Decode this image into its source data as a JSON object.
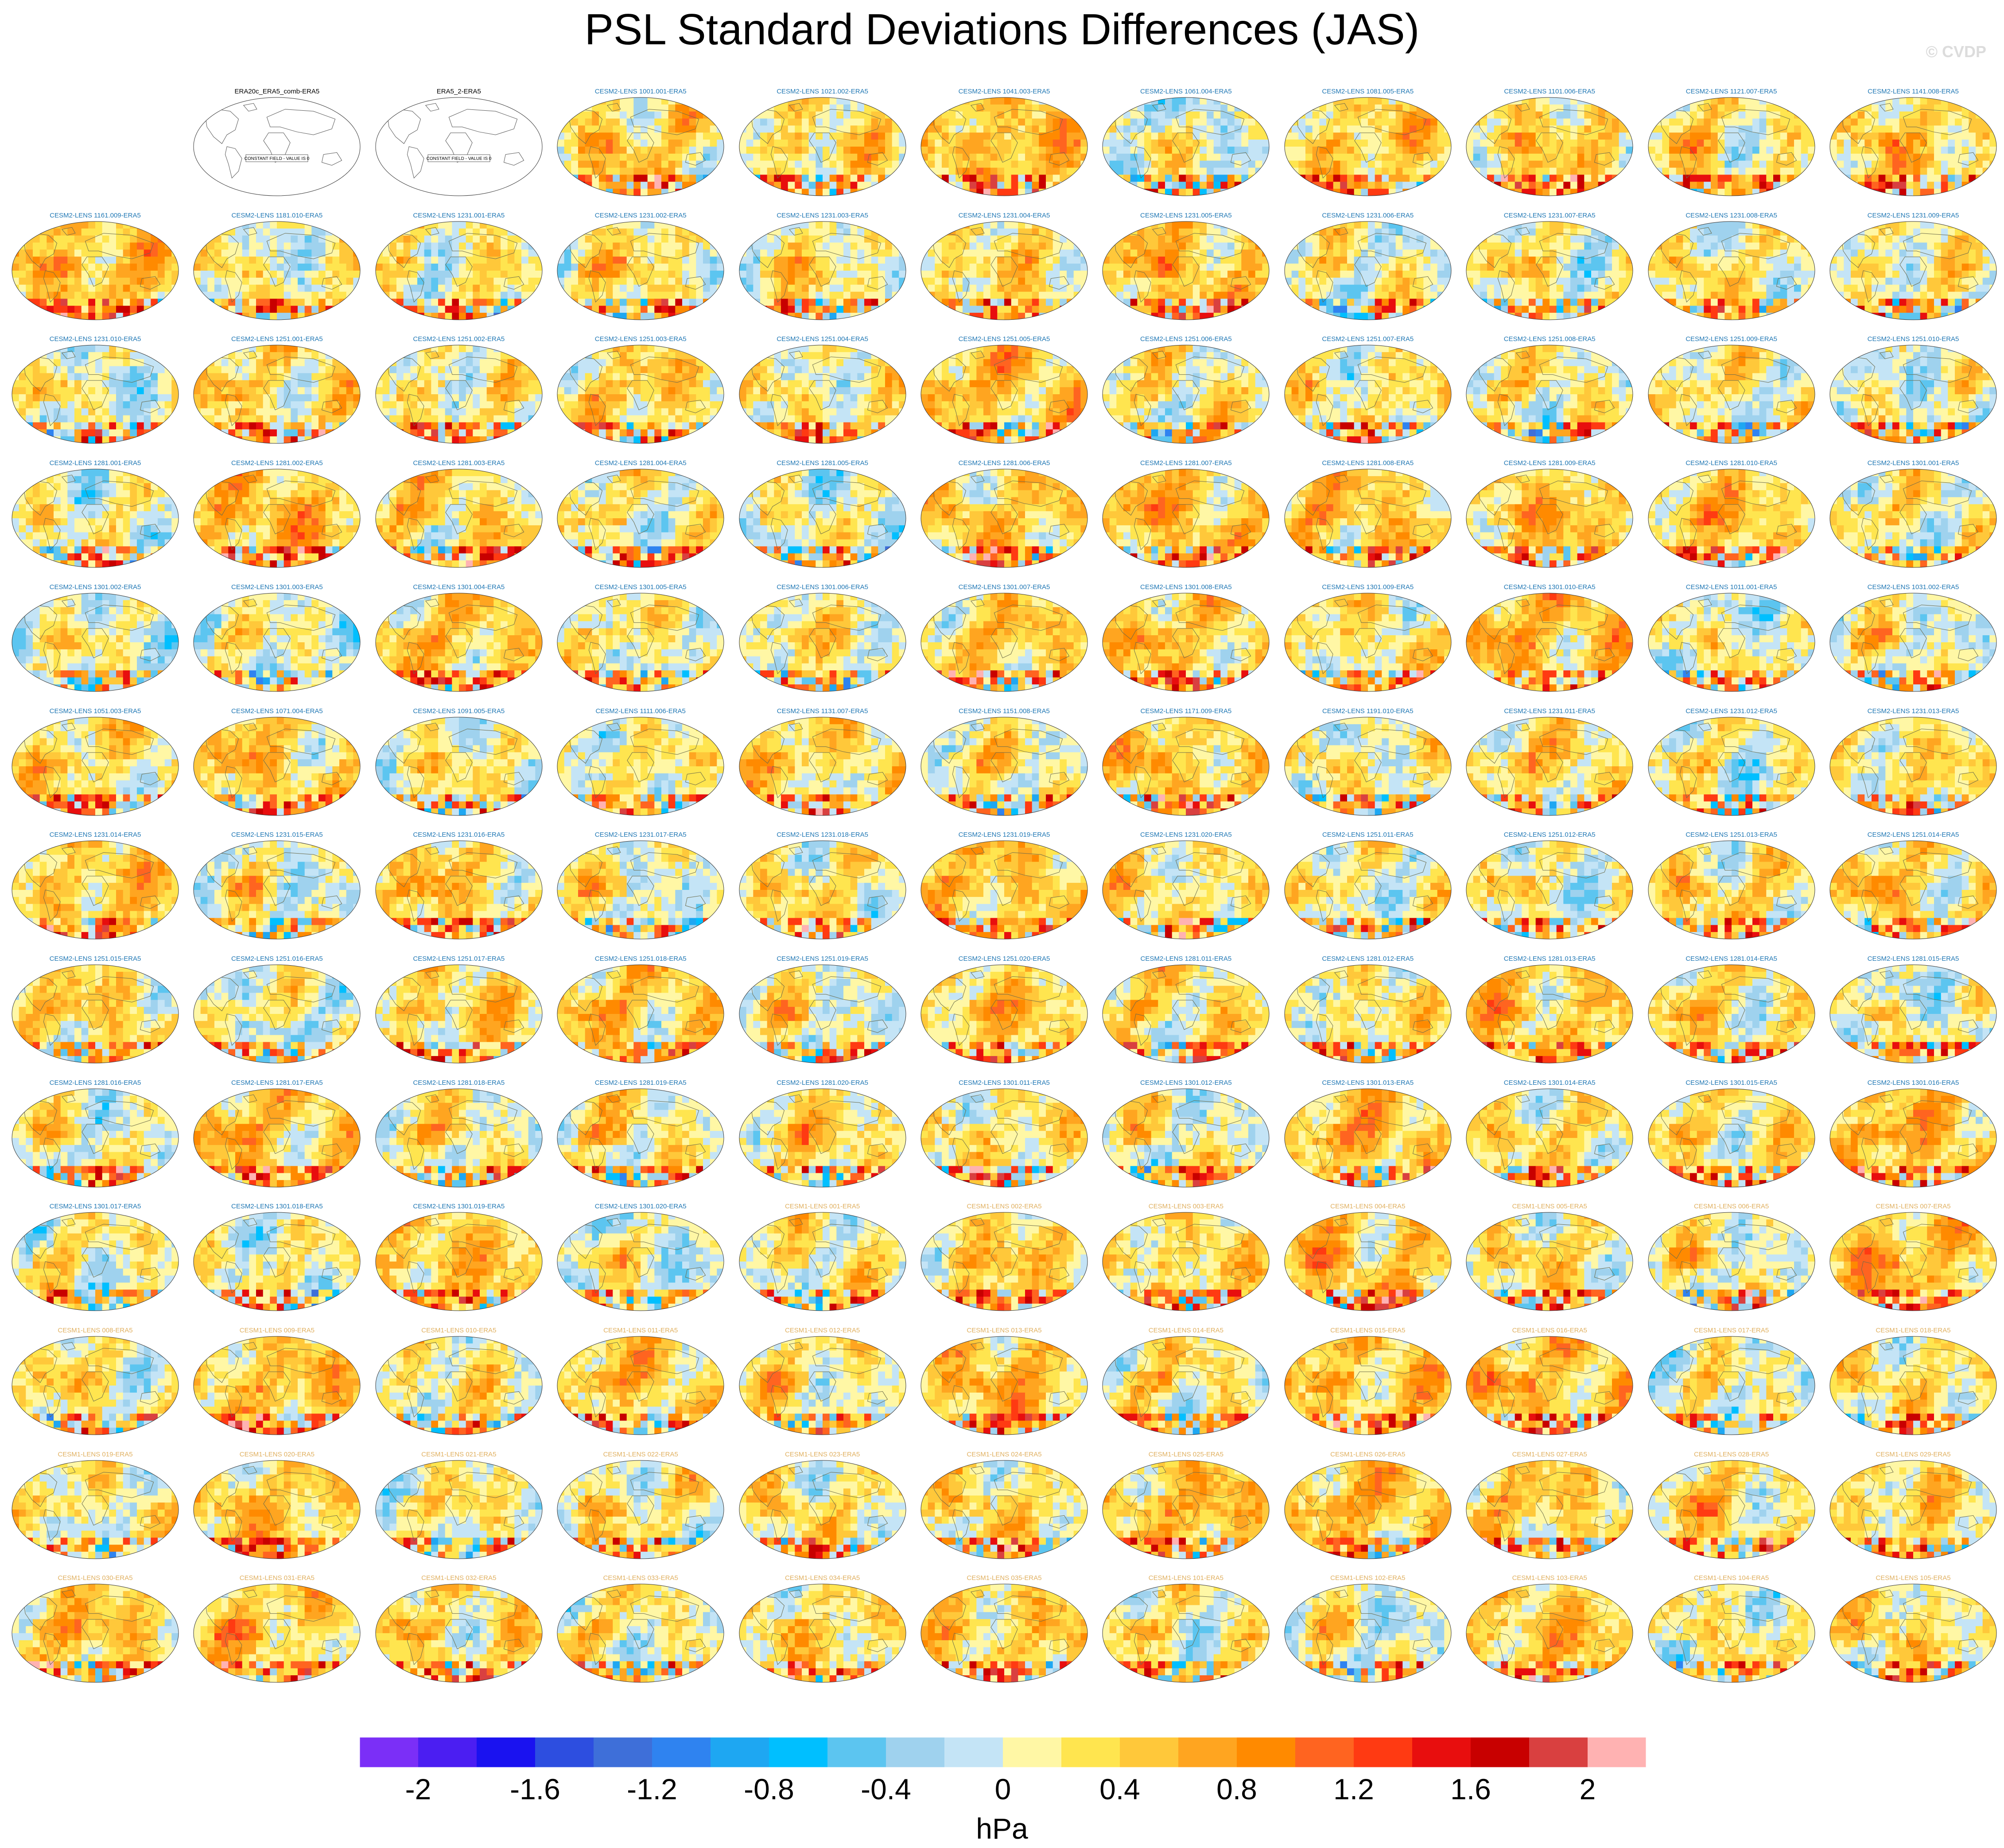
{
  "title": "PSL Standard Deviations Differences (JAS)",
  "copyright": "© CVDP",
  "units": "hPa",
  "colors": {
    "cesm2_title": "#1f77b4",
    "cesm1_title": "#e0b060",
    "obs_title": "#000000",
    "palette": [
      "#7b2ff7",
      "#4b1ef2",
      "#1a12f0",
      "#2d4ee0",
      "#3e6fd9",
      "#2f83f0",
      "#1ea7f2",
      "#00bfff",
      "#5cc5f0",
      "#9fd2ee",
      "#c4e4f6",
      "#fff7a5",
      "#ffe54f",
      "#ffc83a",
      "#ffa520",
      "#ff8a00",
      "#ff6420",
      "#ff3a12",
      "#e80e0e",
      "#c80000",
      "#d94040",
      "#ffb2b2"
    ]
  },
  "chart_data": {
    "type": "heatmap",
    "description_key": "colorbar",
    "colorbar": {
      "min": -2.2,
      "max": 2.2,
      "interval": 0.2,
      "tick_labels": [
        "-2",
        "-1.6",
        "-1.2",
        "-0.8",
        "-0.4",
        "0",
        "0.4",
        "0.8",
        "1.2",
        "1.6",
        "2"
      ],
      "tick_values": [
        -2,
        -1.6,
        -1.2,
        -0.8,
        -0.4,
        0,
        0.4,
        0.8,
        1.2,
        1.6,
        2
      ],
      "units": "hPa"
    },
    "grid": {
      "rows": 13,
      "cols": 11
    },
    "obs_panels": [
      {
        "title": "ERA20c_ERA5_comb-ERA5",
        "note": "CONSTANT FIELD - VALUE IS 0"
      },
      {
        "title": "ERA5_2-ERA5",
        "note": "CONSTANT FIELD - VALUE IS 0"
      }
    ],
    "panel_titles": [
      "CESM2-LENS 1001.001-ERA5",
      "CESM2-LENS 1021.002-ERA5",
      "CESM2-LENS 1041.003-ERA5",
      "CESM2-LENS 1061.004-ERA5",
      "CESM2-LENS 1081.005-ERA5",
      "CESM2-LENS 1101.006-ERA5",
      "CESM2-LENS 1121.007-ERA5",
      "CESM2-LENS 1141.008-ERA5",
      "CESM2-LENS 1161.009-ERA5",
      "CESM2-LENS 1181.010-ERA5",
      "CESM2-LENS 1231.001-ERA5",
      "CESM2-LENS 1231.002-ERA5",
      "CESM2-LENS 1231.003-ERA5",
      "CESM2-LENS 1231.004-ERA5",
      "CESM2-LENS 1231.005-ERA5",
      "CESM2-LENS 1231.006-ERA5",
      "CESM2-LENS 1231.007-ERA5",
      "CESM2-LENS 1231.008-ERA5",
      "CESM2-LENS 1231.009-ERA5",
      "CESM2-LENS 1231.010-ERA5",
      "CESM2-LENS 1251.001-ERA5",
      "CESM2-LENS 1251.002-ERA5",
      "CESM2-LENS 1251.003-ERA5",
      "CESM2-LENS 1251.004-ERA5",
      "CESM2-LENS 1251.005-ERA5",
      "CESM2-LENS 1251.006-ERA5",
      "CESM2-LENS 1251.007-ERA5",
      "CESM2-LENS 1251.008-ERA5",
      "CESM2-LENS 1251.009-ERA5",
      "CESM2-LENS 1251.010-ERA5",
      "CESM2-LENS 1281.001-ERA5",
      "CESM2-LENS 1281.002-ERA5",
      "CESM2-LENS 1281.003-ERA5",
      "CESM2-LENS 1281.004-ERA5",
      "CESM2-LENS 1281.005-ERA5",
      "CESM2-LENS 1281.006-ERA5",
      "CESM2-LENS 1281.007-ERA5",
      "CESM2-LENS 1281.008-ERA5",
      "CESM2-LENS 1281.009-ERA5",
      "CESM2-LENS 1281.010-ERA5",
      "CESM2-LENS 1301.001-ERA5",
      "CESM2-LENS 1301.002-ERA5",
      "CESM2-LENS 1301.003-ERA5",
      "CESM2-LENS 1301.004-ERA5",
      "CESM2-LENS 1301.005-ERA5",
      "CESM2-LENS 1301.006-ERA5",
      "CESM2-LENS 1301.007-ERA5",
      "CESM2-LENS 1301.008-ERA5",
      "CESM2-LENS 1301.009-ERA5",
      "CESM2-LENS 1301.010-ERA5",
      "CESM2-LENS 1011.001-ERA5",
      "CESM2-LENS 1031.002-ERA5",
      "CESM2-LENS 1051.003-ERA5",
      "CESM2-LENS 1071.004-ERA5",
      "CESM2-LENS 1091.005-ERA5",
      "CESM2-LENS 1111.006-ERA5",
      "CESM2-LENS 1131.007-ERA5",
      "CESM2-LENS 1151.008-ERA5",
      "CESM2-LENS 1171.009-ERA5",
      "CESM2-LENS 1191.010-ERA5",
      "CESM2-LENS 1231.011-ERA5",
      "CESM2-LENS 1231.012-ERA5",
      "CESM2-LENS 1231.013-ERA5",
      "CESM2-LENS 1231.014-ERA5",
      "CESM2-LENS 1231.015-ERA5",
      "CESM2-LENS 1231.016-ERA5",
      "CESM2-LENS 1231.017-ERA5",
      "CESM2-LENS 1231.018-ERA5",
      "CESM2-LENS 1231.019-ERA5",
      "CESM2-LENS 1231.020-ERA5",
      "CESM2-LENS 1251.011-ERA5",
      "CESM2-LENS 1251.012-ERA5",
      "CESM2-LENS 1251.013-ERA5",
      "CESM2-LENS 1251.014-ERA5",
      "CESM2-LENS 1251.015-ERA5",
      "CESM2-LENS 1251.016-ERA5",
      "CESM2-LENS 1251.017-ERA5",
      "CESM2-LENS 1251.018-ERA5",
      "CESM2-LENS 1251.019-ERA5",
      "CESM2-LENS 1251.020-ERA5",
      "CESM2-LENS 1281.011-ERA5",
      "CESM2-LENS 1281.012-ERA5",
      "CESM2-LENS 1281.013-ERA5",
      "CESM2-LENS 1281.014-ERA5",
      "CESM2-LENS 1281.015-ERA5",
      "CESM2-LENS 1281.016-ERA5",
      "CESM2-LENS 1281.017-ERA5",
      "CESM2-LENS 1281.018-ERA5",
      "CESM2-LENS 1281.019-ERA5",
      "CESM2-LENS 1281.020-ERA5",
      "CESM2-LENS 1301.011-ERA5",
      "CESM2-LENS 1301.012-ERA5",
      "CESM2-LENS 1301.013-ERA5",
      "CESM2-LENS 1301.014-ERA5",
      "CESM2-LENS 1301.015-ERA5",
      "CESM2-LENS 1301.016-ERA5",
      "CESM2-LENS 1301.017-ERA5",
      "CESM2-LENS 1301.018-ERA5",
      "CESM2-LENS 1301.019-ERA5",
      "CESM2-LENS 1301.020-ERA5",
      "CESM1-LENS 001-ERA5",
      "CESM1-LENS 002-ERA5",
      "CESM1-LENS 003-ERA5",
      "CESM1-LENS 004-ERA5",
      "CESM1-LENS 005-ERA5",
      "CESM1-LENS 006-ERA5",
      "CESM1-LENS 007-ERA5",
      "CESM1-LENS 008-ERA5",
      "CESM1-LENS 009-ERA5",
      "CESM1-LENS 010-ERA5",
      "CESM1-LENS 011-ERA5",
      "CESM1-LENS 012-ERA5",
      "CESM1-LENS 013-ERA5",
      "CESM1-LENS 014-ERA5",
      "CESM1-LENS 015-ERA5",
      "CESM1-LENS 016-ERA5",
      "CESM1-LENS 017-ERA5",
      "CESM1-LENS 018-ERA5",
      "CESM1-LENS 019-ERA5",
      "CESM1-LENS 020-ERA5",
      "CESM1-LENS 021-ERA5",
      "CESM1-LENS 022-ERA5",
      "CESM1-LENS 023-ERA5",
      "CESM1-LENS 024-ERA5",
      "CESM1-LENS 025-ERA5",
      "CESM1-LENS 026-ERA5",
      "CESM1-LENS 027-ERA5",
      "CESM1-LENS 028-ERA5",
      "CESM1-LENS 029-ERA5",
      "CESM1-LENS 030-ERA5",
      "CESM1-LENS 031-ERA5",
      "CESM1-LENS 032-ERA5",
      "CESM1-LENS 033-ERA5",
      "CESM1-LENS 034-ERA5",
      "CESM1-LENS 035-ERA5",
      "CESM1-LENS 101-ERA5",
      "CESM1-LENS 102-ERA5",
      "CESM1-LENS 103-ERA5",
      "CESM1-LENS 104-ERA5",
      "CESM1-LENS 105-ERA5"
    ]
  }
}
